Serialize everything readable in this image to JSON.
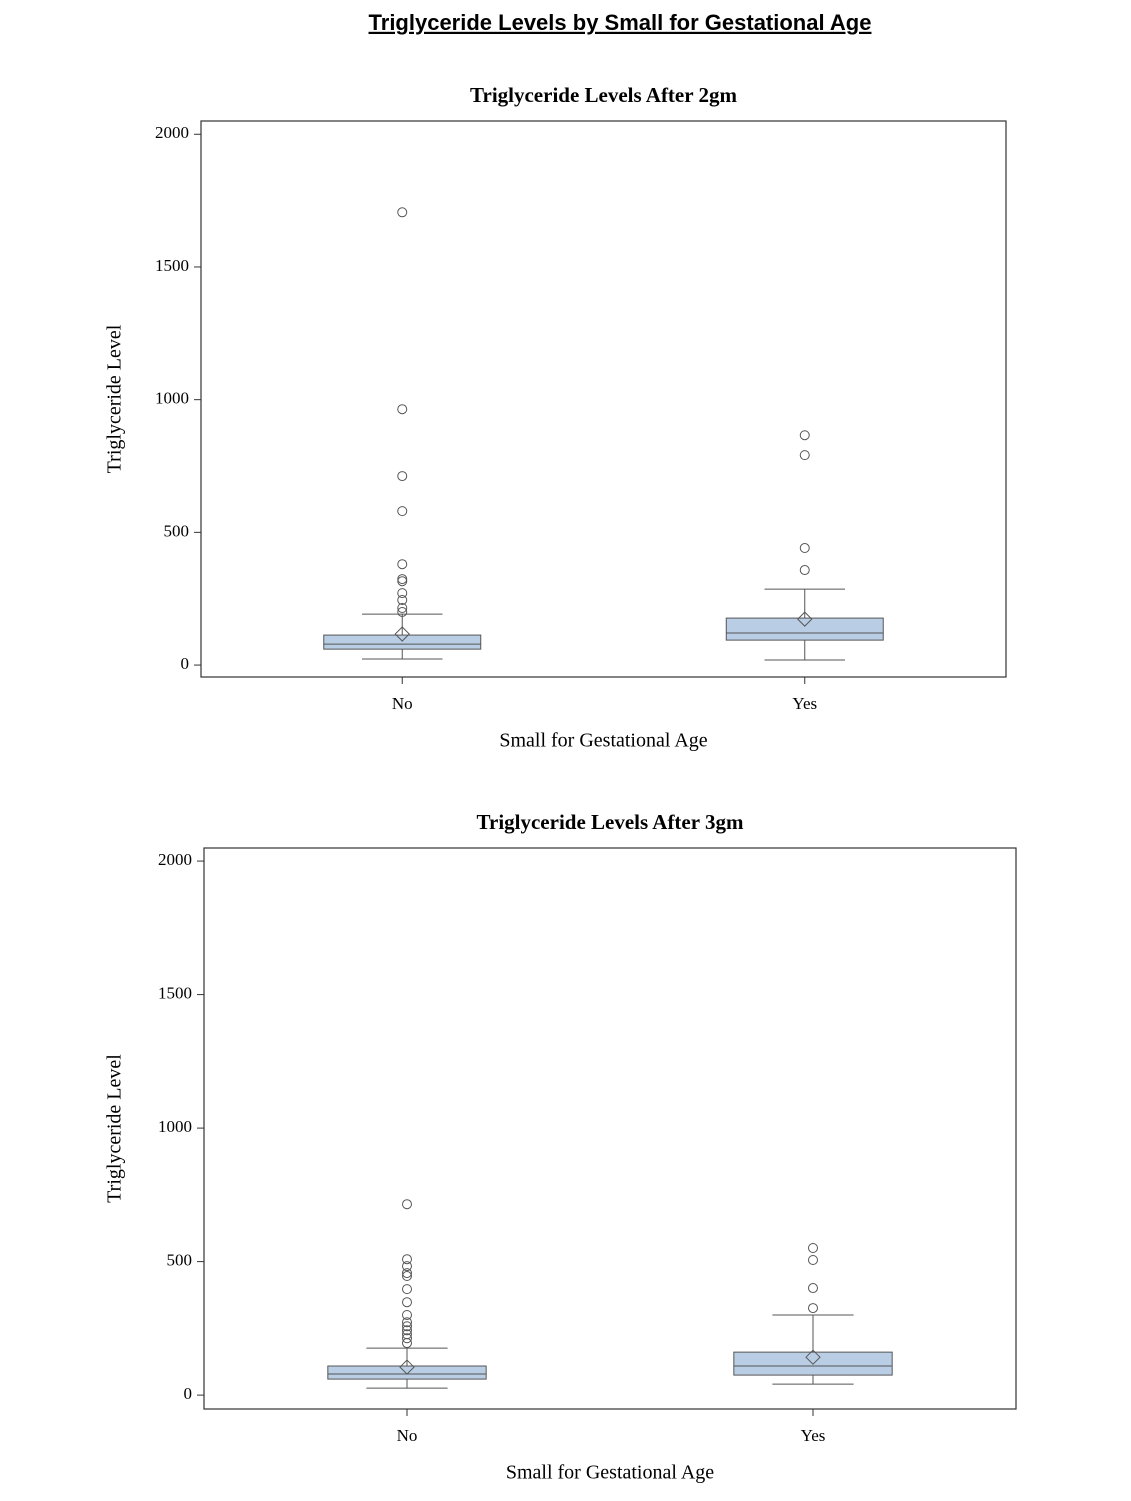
{
  "header": {
    "title": "Triglyceride Levels by Small for Gestational Age"
  },
  "chart_data": [
    {
      "type": "box",
      "title": "Triglyceride Levels After 2gm",
      "x_label": "Small for Gestational Age",
      "y_label": "Triglyceride Level",
      "categories": [
        "No",
        "Yes"
      ],
      "color": "#b9cde5",
      "boxes": [
        {
          "min": 23,
          "q1": 60,
          "median": 79,
          "q3": 113,
          "max": 192,
          "mean": 117,
          "outliers": [
            1706,
            964,
            712,
            580,
            380,
            324,
            316,
            271,
            245,
            215,
            200
          ]
        },
        {
          "min": 19,
          "q1": 94,
          "median": 121,
          "q3": 177,
          "max": 286,
          "mean": 173,
          "outliers": [
            866,
            791,
            441,
            358
          ]
        }
      ],
      "ylim": [
        -45,
        2050
      ],
      "yticks": [
        0,
        500,
        1000,
        1500,
        2000
      ],
      "grid": false
    },
    {
      "type": "box",
      "title": "Triglyceride Levels After 3gm",
      "x_label": "Small for Gestational Age",
      "y_label": "Triglyceride Level",
      "categories": [
        "No",
        "Yes"
      ],
      "color": "#b9cde5",
      "boxes": [
        {
          "min": 26,
          "q1": 60,
          "median": 79,
          "q3": 109,
          "max": 176,
          "mean": 105,
          "outliers": [
            715,
            509,
            483,
            457,
            446,
            397,
            348,
            300,
            273,
            258,
            243,
            228,
            213,
            195
          ]
        },
        {
          "min": 41,
          "q1": 75,
          "median": 109,
          "q3": 161,
          "max": 300,
          "mean": 142,
          "outliers": [
            551,
            506,
            401,
            326
          ]
        }
      ],
      "ylim": [
        -52,
        2049
      ],
      "yticks": [
        0,
        500,
        1000,
        1500,
        2000
      ],
      "grid": false
    }
  ]
}
